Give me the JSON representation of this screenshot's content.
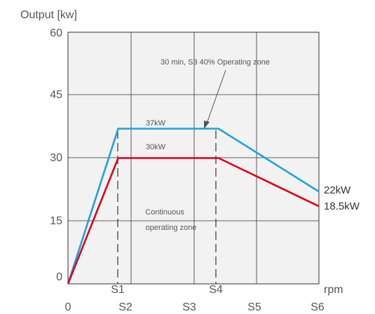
{
  "chart_data": {
    "type": "line",
    "ylabel": "Output [kw]",
    "xlabel": "rpm",
    "ylim": [
      0,
      60
    ],
    "y_ticks": [
      "0",
      "15",
      "30",
      "45",
      "60"
    ],
    "x_ticks": [
      "0",
      "S2",
      "S3",
      "S5",
      "S6"
    ],
    "x_ticks_upper": [
      "S1",
      "S4"
    ],
    "series": [
      {
        "color": "#1aa3e0",
        "x": [
          0,
          0.8,
          2.4,
          4.0
        ],
        "y": [
          0,
          37,
          37,
          22
        ]
      },
      {
        "color": "#e0001b",
        "x": [
          0,
          0.8,
          2.4,
          4.0
        ],
        "y": [
          0,
          30,
          30,
          18.5
        ]
      }
    ],
    "annotations": {
      "s3_zone": "30 min, S3 40% Operating zone",
      "s3_level": "37kW",
      "cont_level": "30kW",
      "cont_zone_line1": "Continuous",
      "cont_zone_line2": "operating zone",
      "end_s3": "22kW",
      "end_cont": "18.5kW"
    },
    "grid": true
  }
}
